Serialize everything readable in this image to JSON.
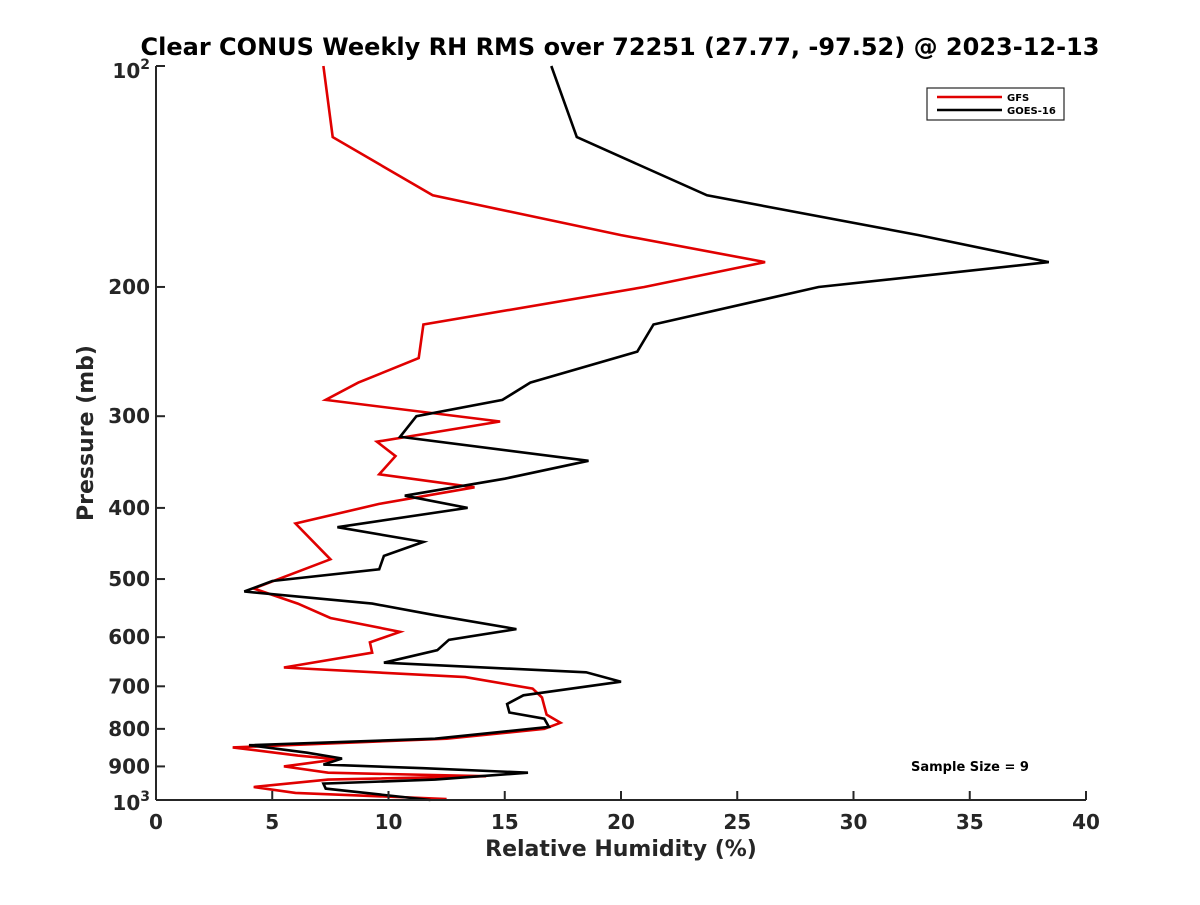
{
  "chart_data": {
    "type": "line",
    "title": "Clear CONUS Weekly RH RMS over 72251 (27.77, -97.52) @ 2023-12-13",
    "xlabel": "Relative Humidity (%)",
    "ylabel": "Pressure (mb)",
    "xlim": [
      0,
      40
    ],
    "ylim": [
      100,
      1000
    ],
    "y_scale": "log",
    "y_reversed": true,
    "x_ticks": [
      0,
      5,
      10,
      15,
      20,
      25,
      30,
      35,
      40
    ],
    "x_tick_labels": [
      "0",
      "5",
      "10",
      "15",
      "20",
      "25",
      "30",
      "35",
      "40"
    ],
    "y_ticks": [
      200,
      300,
      400,
      500,
      600,
      700,
      800,
      900
    ],
    "y_tick_labels": [
      "200",
      "300",
      "400",
      "500",
      "600",
      "700",
      "800",
      "900"
    ],
    "y_end_labels": {
      "top_base": "10",
      "top_exp": "2",
      "bottom_base": "10",
      "bottom_exp": "3"
    },
    "grid": false,
    "legend_position": "top-right",
    "annotation": "Sample Size = 9",
    "series": [
      {
        "name": "GFS",
        "color": "#e00000",
        "points": [
          [
            7.2,
            100
          ],
          [
            7.6,
            125
          ],
          [
            11.9,
            150
          ],
          [
            20.0,
            170
          ],
          [
            26.2,
            185
          ],
          [
            21.0,
            200
          ],
          [
            11.5,
            225
          ],
          [
            11.3,
            250
          ],
          [
            8.7,
            270
          ],
          [
            7.3,
            285
          ],
          [
            14.8,
            305
          ],
          [
            9.5,
            325
          ],
          [
            10.3,
            340
          ],
          [
            9.6,
            360
          ],
          [
            13.7,
            375
          ],
          [
            9.6,
            395
          ],
          [
            6.0,
            420
          ],
          [
            7.5,
            470
          ],
          [
            4.2,
            515
          ],
          [
            6.1,
            540
          ],
          [
            7.5,
            565
          ],
          [
            10.5,
            590
          ],
          [
            9.2,
            610
          ],
          [
            9.3,
            630
          ],
          [
            5.5,
            660
          ],
          [
            13.3,
            680
          ],
          [
            16.2,
            705
          ],
          [
            16.6,
            725
          ],
          [
            16.7,
            745
          ],
          [
            16.8,
            765
          ],
          [
            17.4,
            785
          ],
          [
            16.7,
            800
          ],
          [
            12.5,
            825
          ],
          [
            3.3,
            848
          ],
          [
            6.1,
            870
          ],
          [
            7.8,
            880
          ],
          [
            5.5,
            900
          ],
          [
            7.4,
            918
          ],
          [
            14.2,
            928
          ],
          [
            7.4,
            938
          ],
          [
            4.2,
            960
          ],
          [
            6.0,
            978
          ],
          [
            12.5,
            997
          ]
        ]
      },
      {
        "name": "GOES-16",
        "color": "#000000",
        "points": [
          [
            17.0,
            100
          ],
          [
            18.1,
            125
          ],
          [
            23.7,
            150
          ],
          [
            32.8,
            170
          ],
          [
            38.4,
            185
          ],
          [
            28.5,
            200
          ],
          [
            21.4,
            225
          ],
          [
            20.7,
            245
          ],
          [
            16.1,
            270
          ],
          [
            14.9,
            285
          ],
          [
            11.2,
            300
          ],
          [
            10.5,
            320
          ],
          [
            18.6,
            345
          ],
          [
            15.0,
            365
          ],
          [
            10.7,
            385
          ],
          [
            13.4,
            400
          ],
          [
            7.8,
            425
          ],
          [
            11.5,
            445
          ],
          [
            9.8,
            465
          ],
          [
            9.6,
            485
          ],
          [
            5.0,
            503
          ],
          [
            3.8,
            520
          ],
          [
            9.3,
            540
          ],
          [
            12.0,
            560
          ],
          [
            15.5,
            585
          ],
          [
            12.6,
            605
          ],
          [
            12.1,
            625
          ],
          [
            9.8,
            650
          ],
          [
            18.5,
            670
          ],
          [
            20.0,
            690
          ],
          [
            15.8,
            720
          ],
          [
            15.1,
            740
          ],
          [
            15.2,
            760
          ],
          [
            16.7,
            775
          ],
          [
            16.9,
            795
          ],
          [
            12.0,
            825
          ],
          [
            4.0,
            842
          ],
          [
            6.5,
            862
          ],
          [
            8.0,
            878
          ],
          [
            7.2,
            895
          ],
          [
            11.5,
            905
          ],
          [
            16.0,
            918
          ],
          [
            12.0,
            938
          ],
          [
            7.2,
            950
          ],
          [
            7.3,
            965
          ],
          [
            11.8,
            1000
          ]
        ]
      }
    ]
  }
}
